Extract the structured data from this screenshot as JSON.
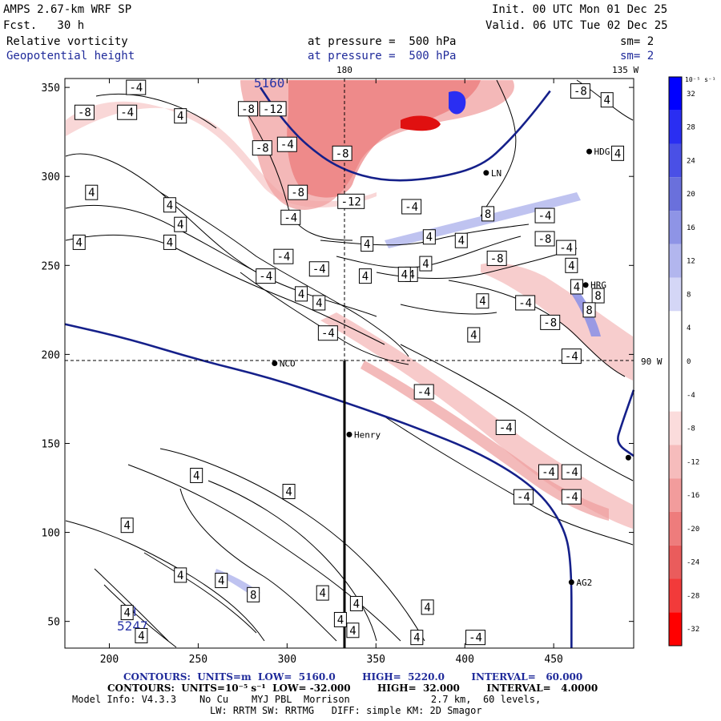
{
  "header": {
    "model_title": "AMPS 2.67-km WRF SP",
    "forecast": "Fcst.   30 h",
    "init": "Init. 00 UTC Mon 01 Dec 25",
    "valid": "Valid. 06 UTC Tue 02 Dec 25",
    "field1_name": "Relative vorticity",
    "field1_level": "at pressure =  500 hPa",
    "field1_sm": "sm= 2",
    "field2_name": "Geopotential height",
    "field2_level": "at pressure =  500 hPa",
    "field2_sm": "sm= 2",
    "lon_180": "180",
    "lon_135w": "135 W",
    "lon_90w": "90 W"
  },
  "chart_data": {
    "type": "contour",
    "xlim": [
      175,
      495
    ],
    "ylim": [
      35,
      355
    ],
    "x_ticks": [
      200,
      250,
      300,
      350,
      400,
      450
    ],
    "y_ticks": [
      50,
      100,
      150,
      200,
      250,
      300,
      350
    ],
    "height_contours": [
      {
        "label": "5160",
        "points": [
          [
            285,
            350
          ],
          [
            295,
            335
          ],
          [
            310,
            318
          ],
          [
            330,
            304
          ],
          [
            355,
            297
          ],
          [
            385,
            299
          ],
          [
            410,
            306
          ],
          [
            425,
            320
          ],
          [
            438,
            335
          ],
          [
            448,
            348
          ]
        ]
      },
      {
        "label": "5220",
        "points": [
          [
            175,
            217
          ],
          [
            210,
            209
          ],
          [
            250,
            197
          ],
          [
            290,
            187
          ],
          [
            330,
            174
          ],
          [
            370,
            160
          ],
          [
            410,
            144
          ],
          [
            440,
            125
          ],
          [
            455,
            105
          ],
          [
            460,
            85
          ],
          [
            460,
            35
          ]
        ]
      },
      {
        "label": "",
        "points": [
          [
            495,
            180
          ],
          [
            488,
            160
          ],
          [
            485,
            150
          ],
          [
            495,
            143
          ]
        ]
      }
    ],
    "contour_labels": [
      {
        "text": "5160",
        "x": 290,
        "y": 352,
        "color": "blue"
      },
      {
        "text": "5247",
        "x": 213,
        "y": 47,
        "color": "blue"
      },
      {
        "text": "H",
        "x": 213,
        "y": 55,
        "color": "blue"
      },
      {
        "text": "-4",
        "x": 215,
        "y": 350
      },
      {
        "text": "-8",
        "x": 186,
        "y": 336
      },
      {
        "text": "-4",
        "x": 210,
        "y": 336
      },
      {
        "text": "4",
        "x": 240,
        "y": 334
      },
      {
        "text": "-8",
        "x": 278,
        "y": 338
      },
      {
        "text": "-12",
        "x": 292,
        "y": 338
      },
      {
        "text": "-8",
        "x": 286,
        "y": 316
      },
      {
        "text": "-4",
        "x": 300,
        "y": 318
      },
      {
        "text": "-8",
        "x": 331,
        "y": 313
      },
      {
        "text": "-8",
        "x": 306,
        "y": 291
      },
      {
        "text": "-12",
        "x": 336,
        "y": 286
      },
      {
        "text": "-4",
        "x": 302,
        "y": 277
      },
      {
        "text": "4",
        "x": 190,
        "y": 291
      },
      {
        "text": "4",
        "x": 234,
        "y": 284
      },
      {
        "text": "4",
        "x": 240,
        "y": 273
      },
      {
        "text": "4",
        "x": 183,
        "y": 263
      },
      {
        "text": "4",
        "x": 234,
        "y": 263
      },
      {
        "text": "-4",
        "x": 298,
        "y": 255
      },
      {
        "text": "-4",
        "x": 288,
        "y": 244
      },
      {
        "text": "-4",
        "x": 318,
        "y": 248
      },
      {
        "text": "4",
        "x": 308,
        "y": 234
      },
      {
        "text": "4",
        "x": 318,
        "y": 229
      },
      {
        "text": "-4",
        "x": 323,
        "y": 212
      },
      {
        "text": "-4",
        "x": 370,
        "y": 283
      },
      {
        "text": "4",
        "x": 345,
        "y": 262
      },
      {
        "text": "4",
        "x": 380,
        "y": 266
      },
      {
        "text": "4",
        "x": 398,
        "y": 264
      },
      {
        "text": "8",
        "x": 413,
        "y": 279
      },
      {
        "text": "4",
        "x": 378,
        "y": 251
      },
      {
        "text": "4",
        "x": 344,
        "y": 244
      },
      {
        "text": "4",
        "x": 370,
        "y": 245
      },
      {
        "text": "-8",
        "x": 418,
        "y": 254
      },
      {
        "text": "-4",
        "x": 445,
        "y": 278
      },
      {
        "text": "-8",
        "x": 445,
        "y": 265
      },
      {
        "text": "-4",
        "x": 457,
        "y": 260
      },
      {
        "text": "4",
        "x": 460,
        "y": 250
      },
      {
        "text": "4",
        "x": 463,
        "y": 238
      },
      {
        "text": "8",
        "x": 475,
        "y": 233
      },
      {
        "text": "4",
        "x": 410,
        "y": 230
      },
      {
        "text": "-4",
        "x": 434,
        "y": 229
      },
      {
        "text": "-8",
        "x": 448,
        "y": 218
      },
      {
        "text": "8",
        "x": 470,
        "y": 225
      },
      {
        "text": "4",
        "x": 405,
        "y": 211
      },
      {
        "text": "-4",
        "x": 460,
        "y": 199
      },
      {
        "text": "-4",
        "x": 377,
        "y": 179
      },
      {
        "text": "-4",
        "x": 423,
        "y": 159
      },
      {
        "text": "-4",
        "x": 447,
        "y": 134
      },
      {
        "text": "-4",
        "x": 460,
        "y": 134
      },
      {
        "text": "-4",
        "x": 433,
        "y": 120
      },
      {
        "text": "-4",
        "x": 460,
        "y": 120
      },
      {
        "text": "4",
        "x": 249,
        "y": 132
      },
      {
        "text": "4",
        "x": 301,
        "y": 123
      },
      {
        "text": "4",
        "x": 210,
        "y": 104
      },
      {
        "text": "4",
        "x": 240,
        "y": 76
      },
      {
        "text": "4",
        "x": 263,
        "y": 73
      },
      {
        "text": "8",
        "x": 281,
        "y": 65
      },
      {
        "text": "4",
        "x": 320,
        "y": 66
      },
      {
        "text": "4",
        "x": 339,
        "y": 60
      },
      {
        "text": "4",
        "x": 330,
        "y": 51
      },
      {
        "text": "4",
        "x": 379,
        "y": 58
      },
      {
        "text": "4",
        "x": 337,
        "y": 45
      },
      {
        "text": "4",
        "x": 373,
        "y": 41
      },
      {
        "text": "-4",
        "x": 406,
        "y": 41
      },
      {
        "text": "4",
        "x": 210,
        "y": 55
      },
      {
        "text": "4",
        "x": 218,
        "y": 42
      },
      {
        "text": "-8",
        "x": 465,
        "y": 348
      },
      {
        "text": "4",
        "x": 480,
        "y": 343
      },
      {
        "text": "4",
        "x": 486,
        "y": 313
      },
      {
        "text": "4",
        "x": 366,
        "y": 245
      }
    ],
    "stations": [
      {
        "name": "NCO",
        "x": 293,
        "y": 195
      },
      {
        "name": "Henry",
        "x": 335,
        "y": 155
      },
      {
        "name": "HRG",
        "x": 468,
        "y": 239
      },
      {
        "name": "AG2",
        "x": 460,
        "y": 72
      },
      {
        "name": "HDG",
        "x": 470,
        "y": 314
      },
      {
        "name": "LN",
        "x": 412,
        "y": 302
      },
      {
        "name": "",
        "x": 492,
        "y": 142
      }
    ],
    "colorbar": {
      "units": "10⁻⁵ s⁻¹",
      "levels": [
        32,
        28,
        24,
        20,
        16,
        12,
        8,
        4,
        0,
        -4,
        -8,
        -12,
        -16,
        -20,
        -24,
        -28,
        -32
      ],
      "colors": [
        "#0000ff",
        "#2a2ef2",
        "#4a50e6",
        "#6a70dc",
        "#8e94e6",
        "#b2b6ee",
        "#d4d6f6",
        "#ffffff",
        "#ffffff",
        "#ffffff",
        "#fbdcdc",
        "#f6bcbc",
        "#f29c9c",
        "#ee7c7c",
        "#ea5c5c",
        "#f23a3a",
        "#ff0000"
      ]
    }
  },
  "footer": {
    "line1": "CONTOURS:  UNITS=m  LOW=  5160.0        HIGH=  5220.0        INTERVAL=   60.000",
    "line2": "CONTOURS:  UNITS=10⁻⁵ s⁻¹  LOW= -32.000        HIGH=  32.000        INTERVAL=   4.0000",
    "line3": "Model Info: V4.3.3    No Cu    MYJ PBL  Morrison              2.7 km,  60 levels,",
    "line4": "LW: RRTM SW: RRTMG   DIFF: simple KM: 2D Smagor"
  }
}
